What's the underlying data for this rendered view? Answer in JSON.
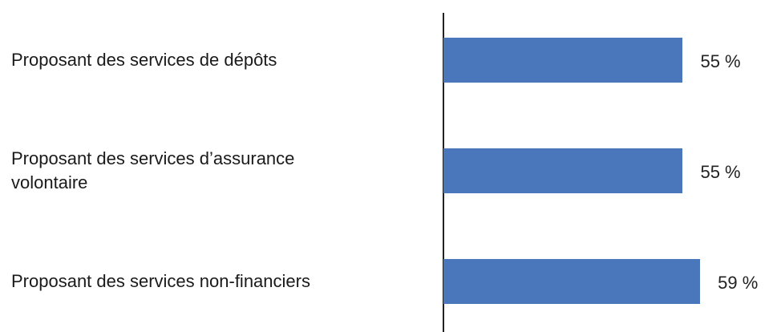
{
  "chart_data": {
    "type": "hbar",
    "categories": [
      "Proposant des services de dépôts",
      "Proposant des services d’assurance volontaire",
      "Proposant des services non-financiers"
    ],
    "values": [
      55,
      55,
      59
    ],
    "value_labels": [
      "55 %",
      "55 %",
      "59 %"
    ],
    "color": "#4a76bb",
    "xlim": [
      0,
      75
    ]
  }
}
